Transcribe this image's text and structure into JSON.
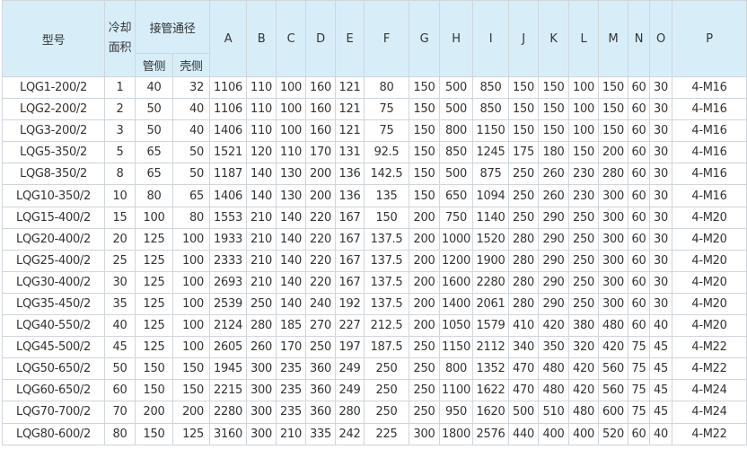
{
  "header": {
    "model": "型号",
    "area": "冷却面积",
    "pipe": "接管通径",
    "tube_side": "管侧",
    "shell_side": "壳侧",
    "dims": [
      "A",
      "B",
      "C",
      "D",
      "E",
      "F",
      "G",
      "H",
      "I",
      "J",
      "K",
      "L",
      "M",
      "N",
      "O",
      "P"
    ]
  },
  "rows": [
    [
      "LQG1-200/2",
      "1",
      "40",
      "32",
      "1106",
      "110",
      "100",
      "160",
      "121",
      "80",
      "150",
      "500",
      "850",
      "150",
      "150",
      "100",
      "150",
      "60",
      "30",
      "4-M16"
    ],
    [
      "LQG2-200/2",
      "2",
      "50",
      "40",
      "1106",
      "110",
      "100",
      "160",
      "121",
      "75",
      "150",
      "500",
      "850",
      "150",
      "150",
      "100",
      "150",
      "60",
      "30",
      "4-M16"
    ],
    [
      "LQG3-200/2",
      "3",
      "50",
      "40",
      "1406",
      "110",
      "100",
      "160",
      "121",
      "75",
      "150",
      "800",
      "1150",
      "150",
      "150",
      "100",
      "150",
      "60",
      "30",
      "4-M16"
    ],
    [
      "LQG5-350/2",
      "5",
      "65",
      "50",
      "1521",
      "120",
      "110",
      "170",
      "131",
      "92.5",
      "150",
      "850",
      "1245",
      "175",
      "180",
      "150",
      "200",
      "60",
      "30",
      "4-M16"
    ],
    [
      "LQG8-350/2",
      "8",
      "65",
      "50",
      "1187",
      "140",
      "130",
      "200",
      "136",
      "142.5",
      "150",
      "500",
      "875",
      "250",
      "260",
      "230",
      "280",
      "60",
      "30",
      "4-M16"
    ],
    [
      "LQG10-350/2",
      "10",
      "80",
      "65",
      "1406",
      "140",
      "130",
      "200",
      "136",
      "135",
      "150",
      "650",
      "1094",
      "250",
      "260",
      "230",
      "300",
      "60",
      "30",
      "4-M16"
    ],
    [
      "LQG15-400/2",
      "15",
      "100",
      "80",
      "1553",
      "210",
      "140",
      "220",
      "167",
      "150",
      "200",
      "750",
      "1140",
      "250",
      "290",
      "250",
      "300",
      "60",
      "30",
      "4-M20"
    ],
    [
      "LQG20-400/2",
      "20",
      "125",
      "100",
      "1933",
      "210",
      "140",
      "220",
      "167",
      "137.5",
      "200",
      "1000",
      "1520",
      "280",
      "290",
      "250",
      "300",
      "60",
      "30",
      "4-M20"
    ],
    [
      "LQG25-400/2",
      "25",
      "125",
      "100",
      "2333",
      "210",
      "140",
      "220",
      "167",
      "137.5",
      "200",
      "1200",
      "1900",
      "280",
      "290",
      "250",
      "300",
      "60",
      "30",
      "4-M20"
    ],
    [
      "LQG30-400/2",
      "30",
      "125",
      "100",
      "2693",
      "210",
      "140",
      "220",
      "167",
      "137.5",
      "200",
      "1600",
      "2280",
      "280",
      "290",
      "250",
      "300",
      "60",
      "30",
      "4-M20"
    ],
    [
      "LQG35-450/2",
      "35",
      "125",
      "100",
      "2539",
      "250",
      "140",
      "240",
      "192",
      "137.5",
      "200",
      "1400",
      "2061",
      "280",
      "290",
      "250",
      "300",
      "60",
      "30",
      "4-M20"
    ],
    [
      "LQG40-550/2",
      "40",
      "125",
      "100",
      "2124",
      "280",
      "185",
      "270",
      "227",
      "212.5",
      "200",
      "1050",
      "1579",
      "410",
      "420",
      "380",
      "480",
      "60",
      "40",
      "4-M20"
    ],
    [
      "LQG45-500/2",
      "45",
      "125",
      "100",
      "2605",
      "260",
      "170",
      "250",
      "197",
      "187.5",
      "250",
      "1150",
      "2112",
      "340",
      "350",
      "320",
      "420",
      "75",
      "45",
      "4-M22"
    ],
    [
      "LQG50-650/2",
      "50",
      "150",
      "150",
      "1945",
      "300",
      "235",
      "360",
      "249",
      "250",
      "250",
      "800",
      "1352",
      "470",
      "480",
      "420",
      "560",
      "75",
      "45",
      "4-M22"
    ],
    [
      "LQG60-650/2",
      "60",
      "150",
      "150",
      "2215",
      "300",
      "235",
      "360",
      "249",
      "250",
      "250",
      "1100",
      "1622",
      "470",
      "480",
      "420",
      "560",
      "75",
      "45",
      "4-M24"
    ],
    [
      "LQG70-700/2",
      "70",
      "200",
      "200",
      "2280",
      "300",
      "235",
      "360",
      "280",
      "250",
      "250",
      "950",
      "1620",
      "500",
      "510",
      "480",
      "600",
      "75",
      "45",
      "4-M24"
    ],
    [
      "LQG80-600/2",
      "80",
      "150",
      "125",
      "3160",
      "300",
      "210",
      "335",
      "242",
      "225",
      "300",
      "1800",
      "2576",
      "440",
      "400",
      "400",
      "520",
      "60",
      "40",
      "4-M22"
    ]
  ]
}
